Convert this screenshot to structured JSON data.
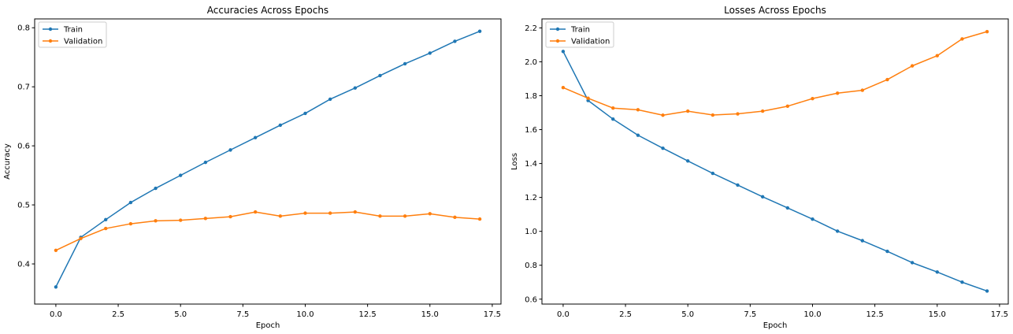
{
  "chart_data": [
    {
      "type": "line",
      "title": "Accuracies Across Epochs",
      "xlabel": "Epoch",
      "ylabel": "Accuracy",
      "xlim": [
        -0.85,
        17.85
      ],
      "ylim": [
        0.332,
        0.815
      ],
      "xticks": [
        0,
        2.5,
        5,
        7.5,
        10,
        12.5,
        15,
        17.5
      ],
      "xtick_labels": [
        "0.0",
        "2.5",
        "5.0",
        "7.5",
        "10.0",
        "12.5",
        "15.0",
        "17.5"
      ],
      "yticks": [
        0.4,
        0.5,
        0.6,
        0.7,
        0.8
      ],
      "ytick_labels": [
        "0.4",
        "0.5",
        "0.6",
        "0.7",
        "0.8"
      ],
      "grid": false,
      "legend": "upper left",
      "x": [
        0,
        1,
        2,
        3,
        4,
        5,
        6,
        7,
        8,
        9,
        10,
        11,
        12,
        13,
        14,
        15,
        16,
        17
      ],
      "series": [
        {
          "name": "Train",
          "color": "#1f77b4",
          "values": [
            0.361,
            0.445,
            0.475,
            0.504,
            0.528,
            0.55,
            0.572,
            0.593,
            0.614,
            0.635,
            0.655,
            0.679,
            0.698,
            0.719,
            0.739,
            0.757,
            0.777,
            0.794
          ]
        },
        {
          "name": "Validation",
          "color": "#ff7f0e",
          "values": [
            0.423,
            0.443,
            0.46,
            0.468,
            0.473,
            0.474,
            0.477,
            0.48,
            0.488,
            0.481,
            0.486,
            0.486,
            0.488,
            0.481,
            0.481,
            0.485,
            0.479,
            0.476
          ]
        }
      ]
    },
    {
      "type": "line",
      "title": "Losses Across Epochs",
      "xlabel": "Epoch",
      "ylabel": "Loss",
      "xlim": [
        -0.85,
        17.85
      ],
      "ylim": [
        0.571,
        2.253
      ],
      "xticks": [
        0,
        2.5,
        5,
        7.5,
        10,
        12.5,
        15,
        17.5
      ],
      "xtick_labels": [
        "0.0",
        "2.5",
        "5.0",
        "7.5",
        "10.0",
        "12.5",
        "15.0",
        "17.5"
      ],
      "yticks": [
        0.6,
        0.8,
        1.0,
        1.2,
        1.4,
        1.6,
        1.8,
        2.0,
        2.2
      ],
      "ytick_labels": [
        "0.6",
        "0.8",
        "1.0",
        "1.2",
        "1.4",
        "1.6",
        "1.8",
        "2.0",
        "2.2"
      ],
      "grid": false,
      "legend": "upper left",
      "x": [
        0,
        1,
        2,
        3,
        4,
        5,
        6,
        7,
        8,
        9,
        10,
        11,
        12,
        13,
        14,
        15,
        16,
        17
      ],
      "series": [
        {
          "name": "Train",
          "color": "#1f77b4",
          "values": [
            2.061,
            1.772,
            1.662,
            1.567,
            1.49,
            1.415,
            1.342,
            1.273,
            1.204,
            1.138,
            1.072,
            1.001,
            0.945,
            0.882,
            0.815,
            0.76,
            0.7,
            0.648
          ]
        },
        {
          "name": "Validation",
          "color": "#ff7f0e",
          "values": [
            1.848,
            1.785,
            1.727,
            1.717,
            1.685,
            1.709,
            1.686,
            1.693,
            1.709,
            1.738,
            1.783,
            1.815,
            1.832,
            1.895,
            1.976,
            2.036,
            2.135,
            2.178
          ]
        }
      ]
    }
  ]
}
